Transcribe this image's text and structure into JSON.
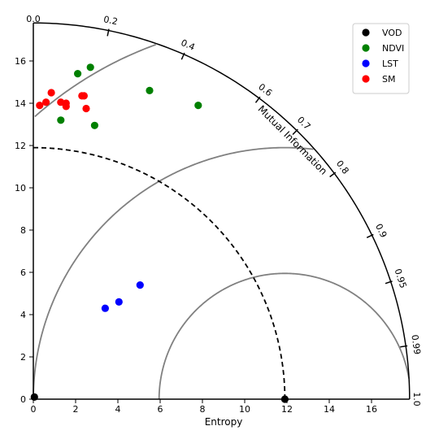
{
  "chart_data": {
    "type": "taylor-diagram",
    "xlabel": "Entropy",
    "arc_label": "Mutual Information",
    "x_ticks": [
      0,
      2,
      4,
      6,
      8,
      10,
      12,
      14,
      16
    ],
    "y_ticks": [
      0,
      2,
      4,
      6,
      8,
      10,
      12,
      14,
      16
    ],
    "r_max": 17.8,
    "angular_ticks": [
      {
        "value": 0.0,
        "label": "0.0"
      },
      {
        "value": 0.2,
        "label": "0.2"
      },
      {
        "value": 0.4,
        "label": "0.4"
      },
      {
        "value": 0.6,
        "label": "0.6"
      },
      {
        "value": 0.7,
        "label": "0.7"
      },
      {
        "value": 0.8,
        "label": "0.8"
      },
      {
        "value": 0.9,
        "label": "0.9"
      },
      {
        "value": 0.95,
        "label": "0.95"
      },
      {
        "value": 0.99,
        "label": "0.99"
      },
      {
        "value": 1.0,
        "label": "1.0"
      }
    ],
    "reference": {
      "value": 11.9
    },
    "grey_arcs": [
      5.95,
      11.9,
      17.85
    ],
    "legend_position": "top-right",
    "series": [
      {
        "name": "VOD",
        "color": "#000000",
        "points": [
          {
            "x": 0.05,
            "y": 0.1
          },
          {
            "x": 11.9,
            "y": 0.0
          }
        ]
      },
      {
        "name": "NDVI",
        "color": "#008000",
        "points": [
          {
            "x": 2.1,
            "y": 15.4
          },
          {
            "x": 2.7,
            "y": 15.7
          },
          {
            "x": 5.5,
            "y": 14.6
          },
          {
            "x": 7.8,
            "y": 13.9
          },
          {
            "x": 1.3,
            "y": 13.2
          },
          {
            "x": 2.9,
            "y": 12.95
          }
        ]
      },
      {
        "name": "LST",
        "color": "#0000ff",
        "points": [
          {
            "x": 3.4,
            "y": 4.3
          },
          {
            "x": 4.05,
            "y": 4.6
          },
          {
            "x": 5.05,
            "y": 5.4
          }
        ]
      },
      {
        "name": "SM",
        "color": "#ff0000",
        "points": [
          {
            "x": 0.85,
            "y": 14.5
          },
          {
            "x": 0.3,
            "y": 13.9
          },
          {
            "x": 0.6,
            "y": 14.05
          },
          {
            "x": 1.3,
            "y": 14.05
          },
          {
            "x": 1.55,
            "y": 14.0
          },
          {
            "x": 1.55,
            "y": 13.85
          },
          {
            "x": 2.3,
            "y": 14.35
          },
          {
            "x": 2.4,
            "y": 14.35
          },
          {
            "x": 2.5,
            "y": 13.75
          }
        ]
      }
    ]
  }
}
